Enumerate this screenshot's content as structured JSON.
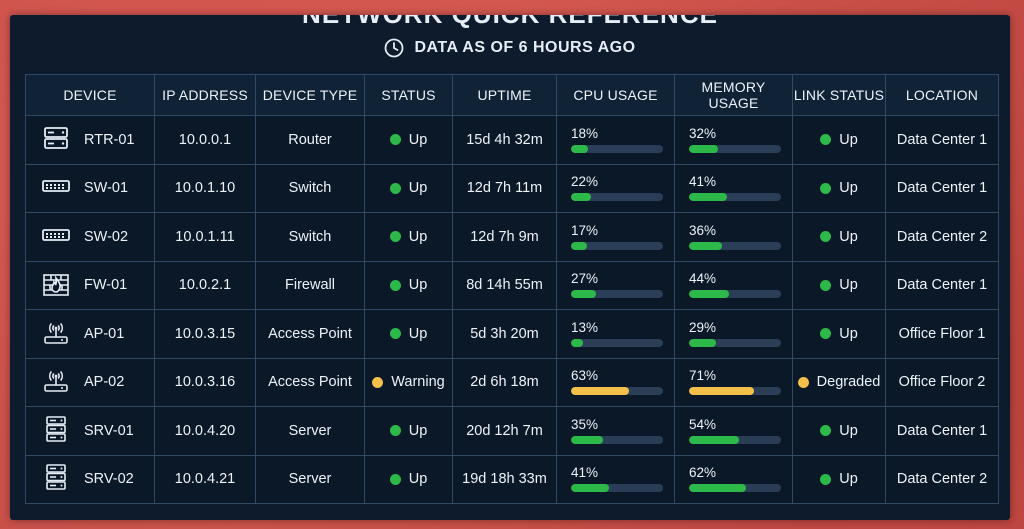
{
  "title": "NETWORK QUICK REFERENCE",
  "subtitle": "DATA AS OF 6 HOURS AGO",
  "colors": {
    "up": "#2db84a",
    "warning": "#f5c04a"
  },
  "columns": [
    "DEVICE",
    "IP ADDRESS",
    "DEVICE TYPE",
    "STATUS",
    "UPTIME",
    "CPU USAGE",
    "MEMORY USAGE",
    "LINK STATUS",
    "LOCATION"
  ],
  "rows": [
    {
      "icon": "router-icon",
      "device": "RTR-01",
      "ip": "10.0.0.1",
      "type": "Router",
      "status": "Up",
      "status_level": "up",
      "uptime": "15d 4h 32m",
      "cpu": 18,
      "cpu_label": "18%",
      "mem": 32,
      "mem_label": "32%",
      "link": "Up",
      "link_level": "up",
      "location": "Data Center 1"
    },
    {
      "icon": "switch-icon",
      "device": "SW-01",
      "ip": "10.0.1.10",
      "type": "Switch",
      "status": "Up",
      "status_level": "up",
      "uptime": "12d 7h 11m",
      "cpu": 22,
      "cpu_label": "22%",
      "mem": 41,
      "mem_label": "41%",
      "link": "Up",
      "link_level": "up",
      "location": "Data Center 1"
    },
    {
      "icon": "switch-icon",
      "device": "SW-02",
      "ip": "10.0.1.11",
      "type": "Switch",
      "status": "Up",
      "status_level": "up",
      "uptime": "12d 7h 9m",
      "cpu": 17,
      "cpu_label": "17%",
      "mem": 36,
      "mem_label": "36%",
      "link": "Up",
      "link_level": "up",
      "location": "Data Center 2"
    },
    {
      "icon": "firewall-icon",
      "device": "FW-01",
      "ip": "10.0.2.1",
      "type": "Firewall",
      "status": "Up",
      "status_level": "up",
      "uptime": "8d 14h 55m",
      "cpu": 27,
      "cpu_label": "27%",
      "mem": 44,
      "mem_label": "44%",
      "link": "Up",
      "link_level": "up",
      "location": "Data Center 1"
    },
    {
      "icon": "access-point-icon",
      "device": "AP-01",
      "ip": "10.0.3.15",
      "type": "Access Point",
      "status": "Up",
      "status_level": "up",
      "uptime": "5d 3h 20m",
      "cpu": 13,
      "cpu_label": "13%",
      "mem": 29,
      "mem_label": "29%",
      "link": "Up",
      "link_level": "up",
      "location": "Office Floor 1"
    },
    {
      "icon": "access-point-icon",
      "device": "AP-02",
      "ip": "10.0.3.16",
      "type": "Access Point",
      "status": "Warning",
      "status_level": "warning",
      "uptime": "2d 6h 18m",
      "cpu": 63,
      "cpu_label": "63%",
      "mem": 71,
      "mem_label": "71%",
      "link": "Degraded",
      "link_level": "warning",
      "location": "Office Floor 2"
    },
    {
      "icon": "server-icon",
      "device": "SRV-01",
      "ip": "10.0.4.20",
      "type": "Server",
      "status": "Up",
      "status_level": "up",
      "uptime": "20d 12h 7m",
      "cpu": 35,
      "cpu_label": "35%",
      "mem": 54,
      "mem_label": "54%",
      "link": "Up",
      "link_level": "up",
      "location": "Data Center 1"
    },
    {
      "icon": "server-icon",
      "device": "SRV-02",
      "ip": "10.0.4.21",
      "type": "Server",
      "status": "Up",
      "status_level": "up",
      "uptime": "19d 18h 33m",
      "cpu": 41,
      "cpu_label": "41%",
      "mem": 62,
      "mem_label": "62%",
      "link": "Up",
      "link_level": "up",
      "location": "Data Center 2"
    }
  ]
}
